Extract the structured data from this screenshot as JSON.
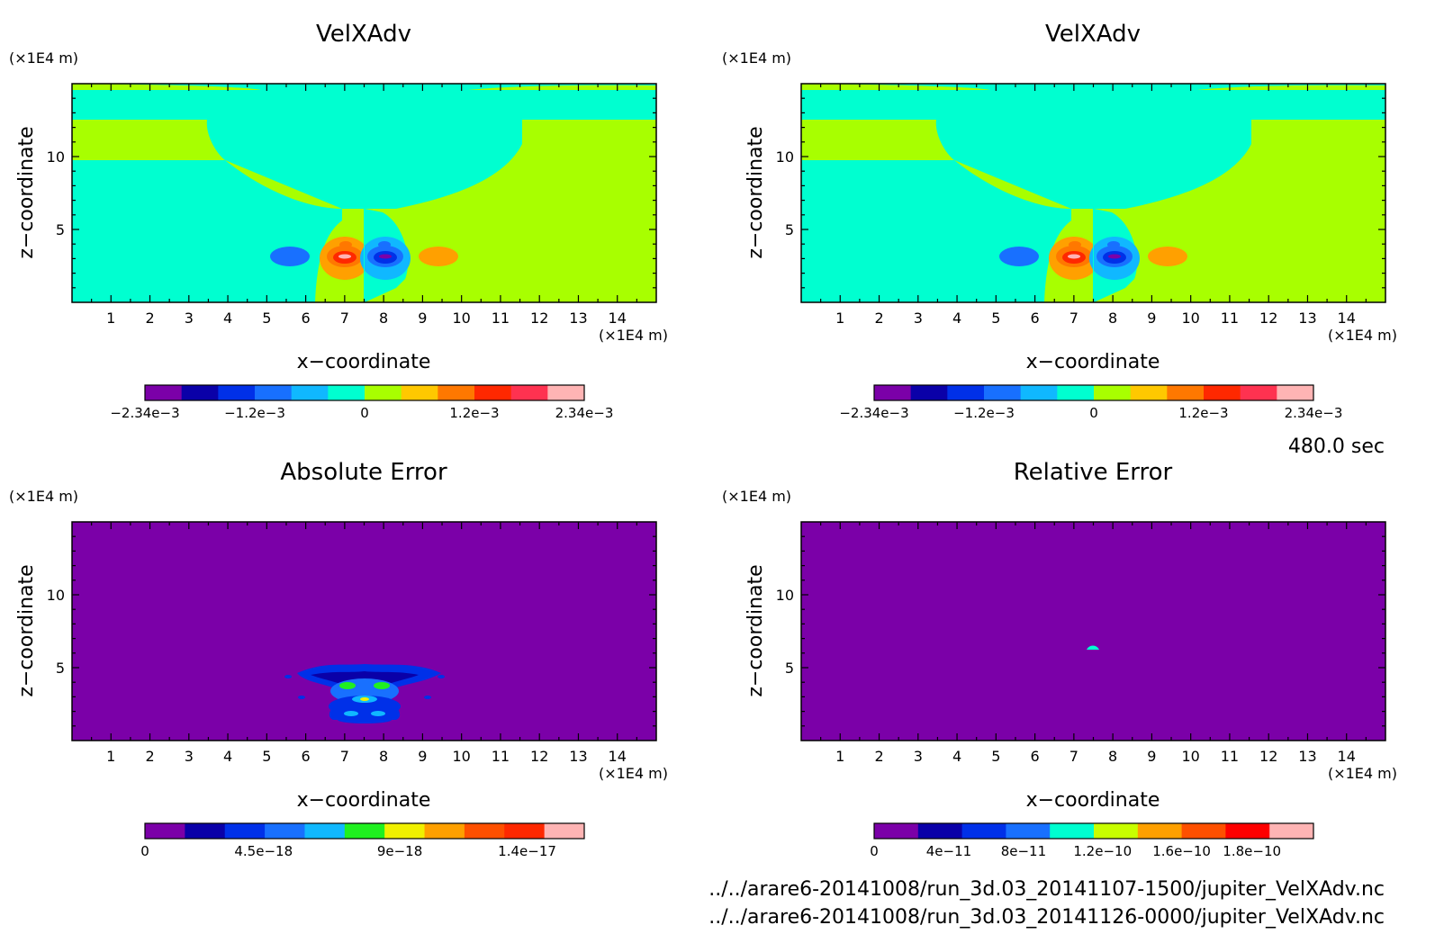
{
  "figure": {
    "time_label": "480.0 sec",
    "file_1": "../../arare6-20141008/run_3d.03_20141107-1500/jupiter_VelXAdv.nc",
    "file_2": "../../arare6-20141008/run_3d.03_20141126-0000/jupiter_VelXAdv.nc"
  },
  "chart_data": [
    {
      "type": "heatmap",
      "title": "VelXAdv",
      "xlabel": "x−coordinate",
      "ylabel": "z−coordinate",
      "x_unit": "(×1E4 m)",
      "y_unit": "(×1E4 m)",
      "xlim": [
        0,
        15
      ],
      "ylim": [
        0,
        15
      ],
      "xticks": [
        "1",
        "2",
        "3",
        "4",
        "5",
        "6",
        "7",
        "8",
        "9",
        "10",
        "11",
        "12",
        "13",
        "14"
      ],
      "yticks": [
        "5",
        "10"
      ],
      "colorbar": {
        "colors": [
          "#7b00a8",
          "#0a00a8",
          "#0030e8",
          "#1870ff",
          "#10b8ff",
          "#00ffd0",
          "#a8ff00",
          "#ffc800",
          "#ff7800",
          "#ff2800",
          "#ff3250",
          "#ffb4b4"
        ],
        "tick_labels": [
          "−2.34e−3",
          "−1.2e−3",
          "0",
          "1.2e−3",
          "2.34e−3"
        ],
        "tick_positions": [
          0,
          0.25,
          0.5,
          0.75,
          1
        ]
      }
    },
    {
      "type": "heatmap",
      "title": "VelXAdv",
      "xlabel": "x−coordinate",
      "ylabel": "z−coordinate",
      "x_unit": "(×1E4 m)",
      "y_unit": "(×1E4 m)",
      "xlim": [
        0,
        15
      ],
      "ylim": [
        0,
        15
      ],
      "xticks": [
        "1",
        "2",
        "3",
        "4",
        "5",
        "6",
        "7",
        "8",
        "9",
        "10",
        "11",
        "12",
        "13",
        "14"
      ],
      "yticks": [
        "5",
        "10"
      ],
      "colorbar": {
        "colors": [
          "#7b00a8",
          "#0a00a8",
          "#0030e8",
          "#1870ff",
          "#10b8ff",
          "#00ffd0",
          "#a8ff00",
          "#ffc800",
          "#ff7800",
          "#ff2800",
          "#ff3250",
          "#ffb4b4"
        ],
        "tick_labels": [
          "−2.34e−3",
          "−1.2e−3",
          "0",
          "1.2e−3",
          "2.34e−3"
        ],
        "tick_positions": [
          0,
          0.25,
          0.5,
          0.75,
          1
        ]
      }
    },
    {
      "type": "heatmap",
      "title": "Absolute Error",
      "xlabel": "x−coordinate",
      "ylabel": "z−coordinate",
      "x_unit": "(×1E4 m)",
      "y_unit": "(×1E4 m)",
      "xlim": [
        0,
        15
      ],
      "ylim": [
        0,
        15
      ],
      "xticks": [
        "1",
        "2",
        "3",
        "4",
        "5",
        "6",
        "7",
        "8",
        "9",
        "10",
        "11",
        "12",
        "13",
        "14"
      ],
      "yticks": [
        "5",
        "10"
      ],
      "colorbar": {
        "colors": [
          "#7b00a8",
          "#0a00a8",
          "#0030e8",
          "#1870ff",
          "#10b8ff",
          "#20f020",
          "#f0f000",
          "#ffa000",
          "#ff5000",
          "#ff2800",
          "#ffb4b4"
        ],
        "tick_labels": [
          "0",
          "4.5e−18",
          "9e−18",
          "1.4e−17"
        ],
        "tick_positions": [
          0,
          0.27,
          0.58,
          0.87
        ]
      }
    },
    {
      "type": "heatmap",
      "title": "Relative Error",
      "xlabel": "x−coordinate",
      "ylabel": "z−coordinate",
      "x_unit": "(×1E4 m)",
      "y_unit": "(×1E4 m)",
      "xlim": [
        0,
        15
      ],
      "ylim": [
        0,
        15
      ],
      "xticks": [
        "1",
        "2",
        "3",
        "4",
        "5",
        "6",
        "7",
        "8",
        "9",
        "10",
        "11",
        "12",
        "13",
        "14"
      ],
      "yticks": [
        "5",
        "10"
      ],
      "colorbar": {
        "colors": [
          "#7b00a8",
          "#0a00a8",
          "#0030e8",
          "#1870ff",
          "#00ffd0",
          "#c8ff00",
          "#ffa000",
          "#ff5000",
          "#ff0000",
          "#ffb4b4"
        ],
        "tick_labels": [
          "0",
          "4e−11",
          "8e−11",
          "1.2e−10",
          "1.6e−10",
          "1.8e−10"
        ],
        "tick_positions": [
          0,
          0.17,
          0.34,
          0.52,
          0.7,
          0.86
        ]
      }
    }
  ]
}
